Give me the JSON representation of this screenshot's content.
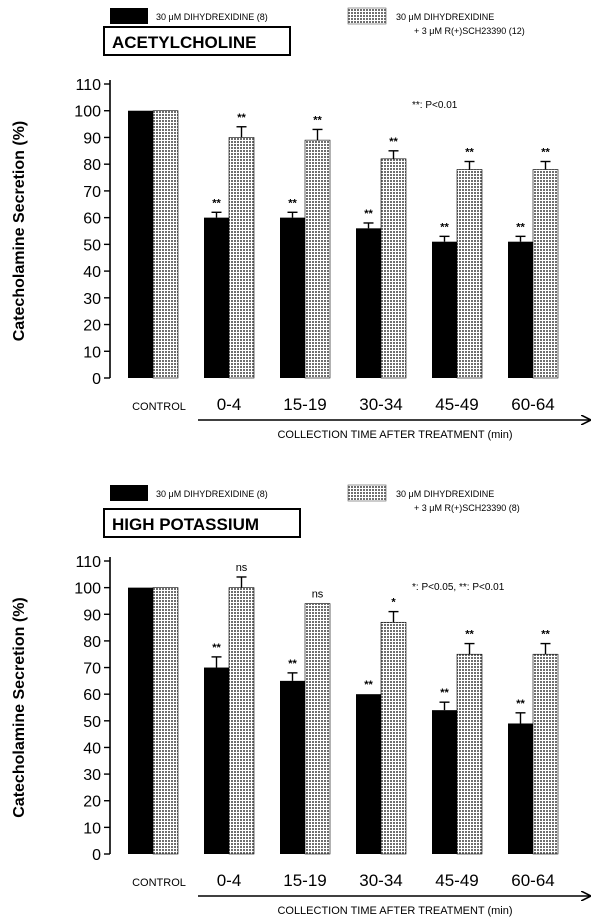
{
  "chart_data": [
    {
      "type": "bar",
      "title": "ACETYLCHOLINE",
      "xlabel": "COLLECTION TIME AFTER TREATMENT (min)",
      "ylabel": "Catecholamine Secretion (%)",
      "ylim": [
        0,
        110
      ],
      "yticks": [
        "0",
        "10",
        "20",
        "30",
        "40",
        "50",
        "60",
        "70",
        "80",
        "90",
        "100",
        "110"
      ],
      "categories": [
        "CONTROL",
        "0-4",
        "15-19",
        "30-34",
        "45-49",
        "60-64"
      ],
      "significance_note": "**: P<0.01",
      "series": [
        {
          "name": "30 μM DIHYDREXIDINE (8)",
          "color": "#000000",
          "values": [
            100,
            60,
            60,
            56,
            51,
            51
          ],
          "errors": [
            0,
            2,
            2,
            2,
            2,
            2
          ],
          "annotations": [
            "",
            "**",
            "**",
            "**",
            "**",
            "**"
          ]
        },
        {
          "name": "30 μM DIHYDREXIDINE",
          "name_line2": "+ 3 μM R(+)SCH23390 (12)",
          "color": "#bdbdbd",
          "pattern": "dotted",
          "values": [
            100,
            90,
            89,
            82,
            78,
            78
          ],
          "errors": [
            0,
            4,
            4,
            3,
            3,
            3
          ],
          "annotations": [
            "",
            "**",
            "**",
            "**",
            "**",
            "**"
          ]
        }
      ]
    },
    {
      "type": "bar",
      "title": "HIGH POTASSIUM",
      "xlabel": "COLLECTION TIME AFTER TREATMENT (min)",
      "ylabel": "Catecholamine Secretion (%)",
      "ylim": [
        0,
        110
      ],
      "yticks": [
        "0",
        "10",
        "20",
        "30",
        "40",
        "50",
        "60",
        "70",
        "80",
        "90",
        "100",
        "110"
      ],
      "categories": [
        "CONTROL",
        "0-4",
        "15-19",
        "30-34",
        "45-49",
        "60-64"
      ],
      "significance_note": "*: P<0.05, **: P<0.01",
      "series": [
        {
          "name": "30 μM DIHYDREXIDINE (8)",
          "color": "#000000",
          "values": [
            100,
            70,
            65,
            60,
            54,
            49
          ],
          "errors": [
            0,
            4,
            3,
            0,
            3,
            4
          ],
          "annotations": [
            "",
            "**",
            "**",
            "**",
            "**",
            "**"
          ]
        },
        {
          "name": "30 μM DIHYDREXIDINE",
          "name_line2": "+ 3 μM R(+)SCH23390 (8)",
          "color": "#bdbdbd",
          "pattern": "dotted",
          "values": [
            100,
            100,
            94,
            87,
            75,
            75
          ],
          "errors": [
            0,
            4,
            0,
            4,
            4,
            4
          ],
          "annotations": [
            "",
            "ns",
            "ns",
            "*",
            "**",
            "**"
          ]
        }
      ]
    }
  ]
}
